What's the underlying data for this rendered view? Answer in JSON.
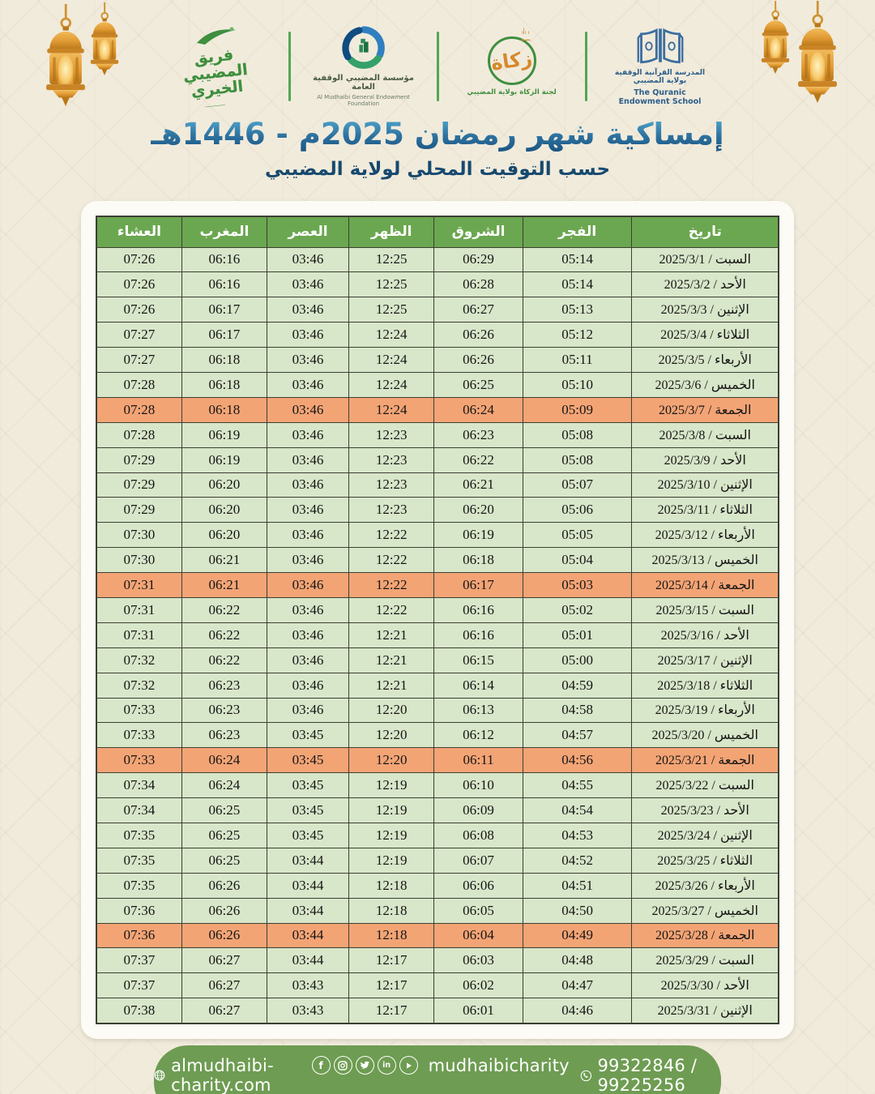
{
  "header": {
    "logos": {
      "charity_team": {
        "name_ar": "فريق المضيبي الخيري"
      },
      "endowment_foundation": {
        "name_ar": "مؤسسة المضيبي الوقفية العامة",
        "name_en": "Al Mudhaibi General Endowment Foundation"
      },
      "zakat_committee": {
        "word": "زكاة",
        "name_ar": "لجنة الزكاة بولاية المضيبي"
      },
      "quranic_school": {
        "name_ar": "المدرسة القرآنية الوقفية بولاية المضيبي",
        "name_en": "The Quranic Endowment School"
      }
    },
    "title": "إمساكية شهر رمضان 2025م - 1446هـ",
    "subtitle": "حسب التوقيت المحلي لولاية المضيبي"
  },
  "table": {
    "columns": [
      "تاريخ",
      "الفجر",
      "الشروق",
      "الظهر",
      "العصر",
      "المغرب",
      "العشاء"
    ],
    "rows": [
      {
        "day": "السبت",
        "date": "2025/3/1",
        "fajr": "05:14",
        "sunrise": "06:29",
        "dhuhr": "12:25",
        "asr": "03:46",
        "maghrib": "06:16",
        "isha": "07:26",
        "friday": false
      },
      {
        "day": "الأحد",
        "date": "2025/3/2",
        "fajr": "05:14",
        "sunrise": "06:28",
        "dhuhr": "12:25",
        "asr": "03:46",
        "maghrib": "06:16",
        "isha": "07:26",
        "friday": false
      },
      {
        "day": "الإثنين",
        "date": "2025/3/3",
        "fajr": "05:13",
        "sunrise": "06:27",
        "dhuhr": "12:25",
        "asr": "03:46",
        "maghrib": "06:17",
        "isha": "07:26",
        "friday": false
      },
      {
        "day": "الثلاثاء",
        "date": "2025/3/4",
        "fajr": "05:12",
        "sunrise": "06:26",
        "dhuhr": "12:24",
        "asr": "03:46",
        "maghrib": "06:17",
        "isha": "07:27",
        "friday": false
      },
      {
        "day": "الأربعاء",
        "date": "2025/3/5",
        "fajr": "05:11",
        "sunrise": "06:26",
        "dhuhr": "12:24",
        "asr": "03:46",
        "maghrib": "06:18",
        "isha": "07:27",
        "friday": false
      },
      {
        "day": "الخميس",
        "date": "2025/3/6",
        "fajr": "05:10",
        "sunrise": "06:25",
        "dhuhr": "12:24",
        "asr": "03:46",
        "maghrib": "06:18",
        "isha": "07:28",
        "friday": false
      },
      {
        "day": "الجمعة",
        "date": "2025/3/7",
        "fajr": "05:09",
        "sunrise": "06:24",
        "dhuhr": "12:24",
        "asr": "03:46",
        "maghrib": "06:18",
        "isha": "07:28",
        "friday": true
      },
      {
        "day": "السبت",
        "date": "2025/3/8",
        "fajr": "05:08",
        "sunrise": "06:23",
        "dhuhr": "12:23",
        "asr": "03:46",
        "maghrib": "06:19",
        "isha": "07:28",
        "friday": false
      },
      {
        "day": "الأحد",
        "date": "2025/3/9",
        "fajr": "05:08",
        "sunrise": "06:22",
        "dhuhr": "12:23",
        "asr": "03:46",
        "maghrib": "06:19",
        "isha": "07:29",
        "friday": false
      },
      {
        "day": "الإثنين",
        "date": "2025/3/10",
        "fajr": "05:07",
        "sunrise": "06:21",
        "dhuhr": "12:23",
        "asr": "03:46",
        "maghrib": "06:20",
        "isha": "07:29",
        "friday": false
      },
      {
        "day": "الثلاثاء",
        "date": "2025/3/11",
        "fajr": "05:06",
        "sunrise": "06:20",
        "dhuhr": "12:23",
        "asr": "03:46",
        "maghrib": "06:20",
        "isha": "07:29",
        "friday": false
      },
      {
        "day": "الأربعاء",
        "date": "2025/3/12",
        "fajr": "05:05",
        "sunrise": "06:19",
        "dhuhr": "12:22",
        "asr": "03:46",
        "maghrib": "06:20",
        "isha": "07:30",
        "friday": false
      },
      {
        "day": "الخميس",
        "date": "2025/3/13",
        "fajr": "05:04",
        "sunrise": "06:18",
        "dhuhr": "12:22",
        "asr": "03:46",
        "maghrib": "06:21",
        "isha": "07:30",
        "friday": false
      },
      {
        "day": "الجمعة",
        "date": "2025/3/14",
        "fajr": "05:03",
        "sunrise": "06:17",
        "dhuhr": "12:22",
        "asr": "03:46",
        "maghrib": "06:21",
        "isha": "07:31",
        "friday": true
      },
      {
        "day": "السبت",
        "date": "2025/3/15",
        "fajr": "05:02",
        "sunrise": "06:16",
        "dhuhr": "12:22",
        "asr": "03:46",
        "maghrib": "06:22",
        "isha": "07:31",
        "friday": false
      },
      {
        "day": "الأحد",
        "date": "2025/3/16",
        "fajr": "05:01",
        "sunrise": "06:16",
        "dhuhr": "12:21",
        "asr": "03:46",
        "maghrib": "06:22",
        "isha": "07:31",
        "friday": false
      },
      {
        "day": "الإثنين",
        "date": "2025/3/17",
        "fajr": "05:00",
        "sunrise": "06:15",
        "dhuhr": "12:21",
        "asr": "03:46",
        "maghrib": "06:22",
        "isha": "07:32",
        "friday": false
      },
      {
        "day": "الثلاثاء",
        "date": "2025/3/18",
        "fajr": "04:59",
        "sunrise": "06:14",
        "dhuhr": "12:21",
        "asr": "03:46",
        "maghrib": "06:23",
        "isha": "07:32",
        "friday": false
      },
      {
        "day": "الأربعاء",
        "date": "2025/3/19",
        "fajr": "04:58",
        "sunrise": "06:13",
        "dhuhr": "12:20",
        "asr": "03:46",
        "maghrib": "06:23",
        "isha": "07:33",
        "friday": false
      },
      {
        "day": "الخميس",
        "date": "2025/3/20",
        "fajr": "04:57",
        "sunrise": "06:12",
        "dhuhr": "12:20",
        "asr": "03:45",
        "maghrib": "06:23",
        "isha": "07:33",
        "friday": false
      },
      {
        "day": "الجمعة",
        "date": "2025/3/21",
        "fajr": "04:56",
        "sunrise": "06:11",
        "dhuhr": "12:20",
        "asr": "03:45",
        "maghrib": "06:24",
        "isha": "07:33",
        "friday": true
      },
      {
        "day": "السبت",
        "date": "2025/3/22",
        "fajr": "04:55",
        "sunrise": "06:10",
        "dhuhr": "12:19",
        "asr": "03:45",
        "maghrib": "06:24",
        "isha": "07:34",
        "friday": false
      },
      {
        "day": "الأحد",
        "date": "2025/3/23",
        "fajr": "04:54",
        "sunrise": "06:09",
        "dhuhr": "12:19",
        "asr": "03:45",
        "maghrib": "06:25",
        "isha": "07:34",
        "friday": false
      },
      {
        "day": "الإثنين",
        "date": "2025/3/24",
        "fajr": "04:53",
        "sunrise": "06:08",
        "dhuhr": "12:19",
        "asr": "03:45",
        "maghrib": "06:25",
        "isha": "07:35",
        "friday": false
      },
      {
        "day": "الثلاثاء",
        "date": "2025/3/25",
        "fajr": "04:52",
        "sunrise": "06:07",
        "dhuhr": "12:19",
        "asr": "03:44",
        "maghrib": "06:25",
        "isha": "07:35",
        "friday": false
      },
      {
        "day": "الأربعاء",
        "date": "2025/3/26",
        "fajr": "04:51",
        "sunrise": "06:06",
        "dhuhr": "12:18",
        "asr": "03:44",
        "maghrib": "06:26",
        "isha": "07:35",
        "friday": false
      },
      {
        "day": "الخميس",
        "date": "2025/3/27",
        "fajr": "04:50",
        "sunrise": "06:05",
        "dhuhr": "12:18",
        "asr": "03:44",
        "maghrib": "06:26",
        "isha": "07:36",
        "friday": false
      },
      {
        "day": "الجمعة",
        "date": "2025/3/28",
        "fajr": "04:49",
        "sunrise": "06:04",
        "dhuhr": "12:18",
        "asr": "03:44",
        "maghrib": "06:26",
        "isha": "07:36",
        "friday": true
      },
      {
        "day": "السبت",
        "date": "2025/3/29",
        "fajr": "04:48",
        "sunrise": "06:03",
        "dhuhr": "12:17",
        "asr": "03:44",
        "maghrib": "06:27",
        "isha": "07:37",
        "friday": false
      },
      {
        "day": "الأحد",
        "date": "2025/3/30",
        "fajr": "04:47",
        "sunrise": "06:02",
        "dhuhr": "12:17",
        "asr": "03:43",
        "maghrib": "06:27",
        "isha": "07:37",
        "friday": false
      },
      {
        "day": "الإثنين",
        "date": "2025/3/31",
        "fajr": "04:46",
        "sunrise": "06:01",
        "dhuhr": "12:17",
        "asr": "03:43",
        "maghrib": "06:27",
        "isha": "07:38",
        "friday": false
      }
    ]
  },
  "footer": {
    "website": "almudhaibi-charity.com",
    "social_handle": "mudhaibicharity",
    "phone": "99322846 / 99225256"
  },
  "colors": {
    "background": "#f1ebdc",
    "header_green": "#6ba750",
    "row_green": "#d8e6c9",
    "friday_orange": "#f3a475",
    "footer_green": "#6e9c52",
    "title_blue": "#2d729f",
    "subtitle_navy": "#17496e",
    "lantern_gold": "#e8a53d"
  }
}
